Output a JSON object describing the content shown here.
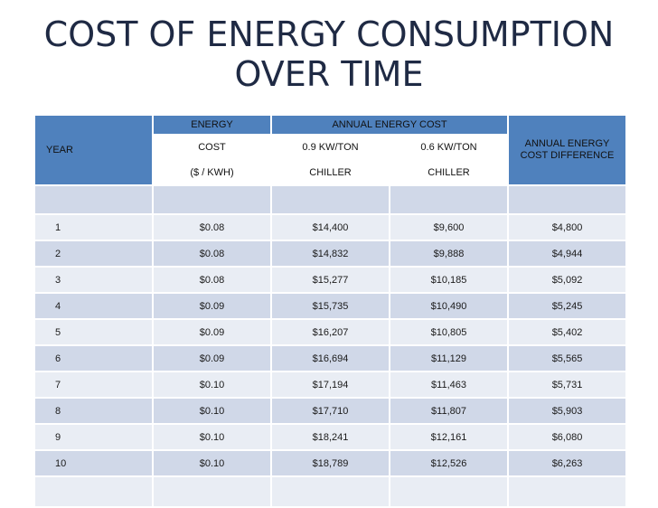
{
  "title": {
    "line1": "COST OF ENERGY CONSUMPTION",
    "line2": "OVER TIME"
  },
  "table": {
    "header": {
      "year": "YEAR",
      "energy": "ENERGY",
      "energy_cost": "COST",
      "energy_unit": "($ / KWH)",
      "annual_cost": "ANNUAL ENERGY COST",
      "col_09": "0.9 KW/TON",
      "col_06": "0.6 KW/TON",
      "chiller_09": "CHILLER",
      "chiller_06": "CHILLER",
      "diff": "ANNUAL ENERGY COST DIFFERENCE"
    },
    "rows": [
      {
        "year": "1",
        "rate": "$0.08",
        "c09": "$14,400",
        "c06": "$9,600",
        "diff": "$4,800"
      },
      {
        "year": "2",
        "rate": "$0.08",
        "c09": "$14,832",
        "c06": "$9,888",
        "diff": "$4,944"
      },
      {
        "year": "3",
        "rate": "$0.08",
        "c09": "$15,277",
        "c06": "$10,185",
        "diff": "$5,092"
      },
      {
        "year": "4",
        "rate": "$0.09",
        "c09": "$15,735",
        "c06": "$10,490",
        "diff": "$5,245"
      },
      {
        "year": "5",
        "rate": "$0.09",
        "c09": "$16,207",
        "c06": "$10,805",
        "diff": "$5,402"
      },
      {
        "year": "6",
        "rate": "$0.09",
        "c09": "$16,694",
        "c06": "$11,129",
        "diff": "$5,565"
      },
      {
        "year": "7",
        "rate": "$0.10",
        "c09": "$17,194",
        "c06": "$11,463",
        "diff": "$5,731"
      },
      {
        "year": "8",
        "rate": "$0.10",
        "c09": "$17,710",
        "c06": "$11,807",
        "diff": "$5,903"
      },
      {
        "year": "9",
        "rate": "$0.10",
        "c09": "$18,241",
        "c06": "$12,161",
        "diff": "$6,080"
      },
      {
        "year": "10",
        "rate": "$0.10",
        "c09": "$18,789",
        "c06": "$12,526",
        "diff": "$6,263"
      }
    ]
  }
}
